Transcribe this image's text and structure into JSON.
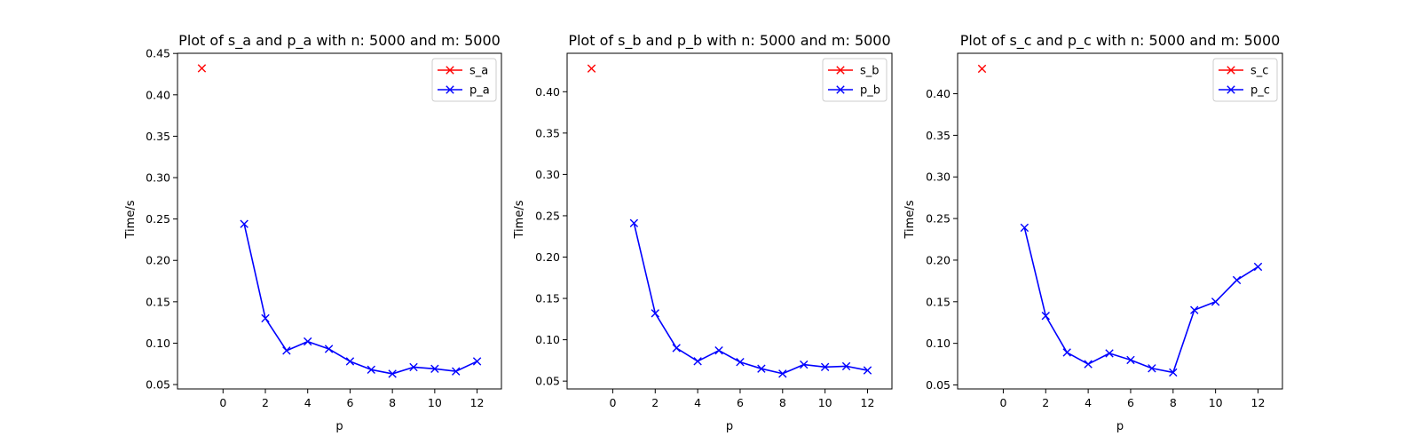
{
  "chart_data": [
    {
      "type": "line",
      "title": "Plot of s_a and p_a with n: 5000 and m: 5000",
      "xlabel": "p",
      "ylabel": "Time/s",
      "xlim": [
        -2.15,
        13.15
      ],
      "ylim": [
        0.0447,
        0.4502
      ],
      "xticks": [
        0,
        2,
        4,
        6,
        8,
        10,
        12
      ],
      "xtick_labels": [
        "0",
        "2",
        "4",
        "6",
        "8",
        "10",
        "12"
      ],
      "yticks": [
        0.05,
        0.1,
        0.15,
        0.2,
        0.25,
        0.3,
        0.35,
        0.4,
        0.45
      ],
      "ytick_labels": [
        "0.05",
        "0.10",
        "0.15",
        "0.20",
        "0.25",
        "0.30",
        "0.35",
        "0.40",
        "0.45"
      ],
      "grid": false,
      "legend": "top-right",
      "series": [
        {
          "name": "s_a",
          "color": "#ff0000",
          "marker": "x",
          "x": [
            -1
          ],
          "y": [
            0.432
          ]
        },
        {
          "name": "p_a",
          "color": "#0000ff",
          "marker": "x",
          "x": [
            1,
            2,
            3,
            4,
            5,
            6,
            7,
            8,
            9,
            10,
            11,
            12
          ],
          "y": [
            0.244,
            0.13,
            0.091,
            0.102,
            0.093,
            0.078,
            0.068,
            0.063,
            0.071,
            0.069,
            0.066,
            0.078
          ]
        }
      ]
    },
    {
      "type": "line",
      "title": "Plot of s_b and p_b with n: 5000 and m: 5000",
      "xlabel": "p",
      "ylabel": "Time/s",
      "xlim": [
        -2.15,
        13.15
      ],
      "ylim": [
        0.0405,
        0.4465
      ],
      "xticks": [
        0,
        2,
        4,
        6,
        8,
        10,
        12
      ],
      "xtick_labels": [
        "0",
        "2",
        "4",
        "6",
        "8",
        "10",
        "12"
      ],
      "yticks": [
        0.05,
        0.1,
        0.15,
        0.2,
        0.25,
        0.3,
        0.35,
        0.4
      ],
      "ytick_labels": [
        "0.05",
        "0.10",
        "0.15",
        "0.20",
        "0.25",
        "0.30",
        "0.35",
        "0.40"
      ],
      "grid": false,
      "legend": "top-right",
      "series": [
        {
          "name": "s_b",
          "color": "#ff0000",
          "marker": "x",
          "x": [
            -1
          ],
          "y": [
            0.428
          ]
        },
        {
          "name": "p_b",
          "color": "#0000ff",
          "marker": "x",
          "x": [
            1,
            2,
            3,
            4,
            5,
            6,
            7,
            8,
            9,
            10,
            11,
            12
          ],
          "y": [
            0.241,
            0.132,
            0.09,
            0.074,
            0.087,
            0.073,
            0.065,
            0.059,
            0.07,
            0.067,
            0.068,
            0.063
          ]
        }
      ]
    },
    {
      "type": "line",
      "title": "Plot of s_c and p_c with n: 5000 and m: 5000",
      "xlabel": "p",
      "ylabel": "Time/s",
      "xlim": [
        -2.15,
        13.15
      ],
      "ylim": [
        0.0452,
        0.4486
      ],
      "xticks": [
        0,
        2,
        4,
        6,
        8,
        10,
        12
      ],
      "xtick_labels": [
        "0",
        "2",
        "4",
        "6",
        "8",
        "10",
        "12"
      ],
      "yticks": [
        0.05,
        0.1,
        0.15,
        0.2,
        0.25,
        0.3,
        0.35,
        0.4
      ],
      "ytick_labels": [
        "0.05",
        "0.10",
        "0.15",
        "0.20",
        "0.25",
        "0.30",
        "0.35",
        "0.40"
      ],
      "grid": false,
      "legend": "top-right",
      "series": [
        {
          "name": "s_c",
          "color": "#ff0000",
          "marker": "x",
          "x": [
            -1
          ],
          "y": [
            0.43
          ]
        },
        {
          "name": "p_c",
          "color": "#0000ff",
          "marker": "x",
          "x": [
            1,
            2,
            3,
            4,
            5,
            6,
            7,
            8,
            9,
            10,
            11,
            12
          ],
          "y": [
            0.239,
            0.133,
            0.089,
            0.075,
            0.088,
            0.08,
            0.07,
            0.065,
            0.14,
            0.15,
            0.176,
            0.192
          ]
        }
      ]
    }
  ]
}
